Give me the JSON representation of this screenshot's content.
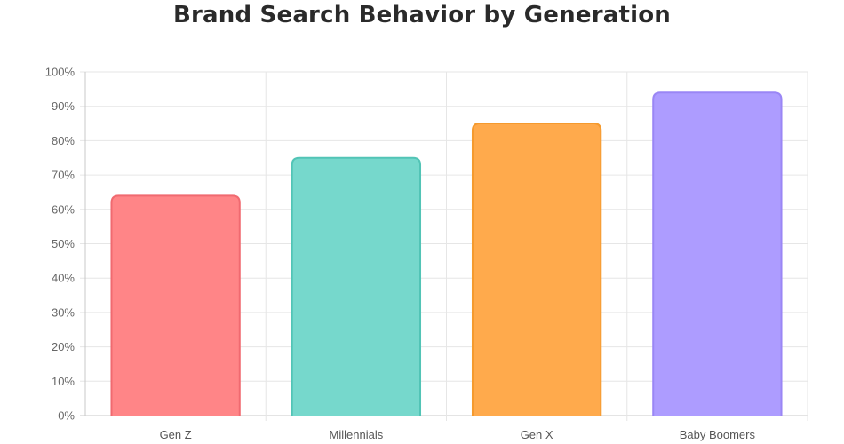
{
  "chart_data": {
    "type": "bar",
    "title": "Brand Search Behavior by Generation",
    "categories": [
      "Gen Z",
      "Millennials",
      "Gen X",
      "Baby Boomers"
    ],
    "values": [
      64,
      75,
      85,
      94
    ],
    "ylim": [
      0,
      100
    ],
    "ytick_step": 10,
    "ytick_suffix": "%",
    "yticks": [
      "0%",
      "10%",
      "20%",
      "30%",
      "40%",
      "50%",
      "60%",
      "70%",
      "80%",
      "90%",
      "100%"
    ],
    "grid": true,
    "legend": "none",
    "colors": [
      {
        "fill": "#ff8587",
        "stroke": "#f06a70"
      },
      {
        "fill": "#76d8cc",
        "stroke": "#52c4b6"
      },
      {
        "fill": "#ffaa4c",
        "stroke": "#f59a2e"
      },
      {
        "fill": "#ad9cff",
        "stroke": "#9a86f5"
      }
    ]
  }
}
